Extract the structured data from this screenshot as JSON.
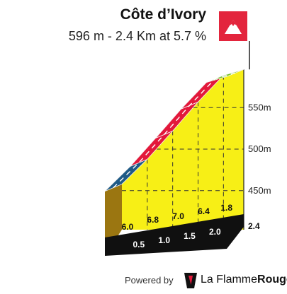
{
  "header": {
    "title": "Côte d’Ivory",
    "subtitle": "596 m - 2.4 Km at 5.7 %"
  },
  "colors": {
    "gradient_0_6": "#1f5a86",
    "gradient_6_9": "#e3183b",
    "gradient_0_2": "#77c425",
    "profile_fill": "#f7ef16",
    "side_face": "#9b7611",
    "base_band": "#101010",
    "finish_flag": "#e3253d"
  },
  "chart_data": {
    "type": "area",
    "title": "Côte d’Ivory",
    "summary": {
      "altitude_m": 596,
      "length_km": 2.4,
      "avg_gradient_pct": 5.7
    },
    "distance_km": [
      0,
      0.5,
      1.0,
      1.5,
      2.0,
      2.4
    ],
    "segment_gradients_pct": [
      6.0,
      6.8,
      7.0,
      6.4,
      1.8
    ],
    "segment_colors": [
      "#1f5a86",
      "#e3183b",
      "#e3183b",
      "#e3183b",
      "#77c425"
    ],
    "distance_tick_labels": [
      "0.5",
      "1.0",
      "1.5",
      "2.0"
    ],
    "end_distance_label": "2.4",
    "altitude_ticks": [
      {
        "value": 450,
        "label": "450m"
      },
      {
        "value": 500,
        "label": "500m"
      },
      {
        "value": 550,
        "label": "550m"
      }
    ],
    "ylim": [
      400,
      600
    ],
    "grid": true,
    "finish_flag": true
  },
  "footer": {
    "powered_by": "Powered by",
    "brand_regular": "La Flamme",
    "brand_bold": "Rouge"
  }
}
